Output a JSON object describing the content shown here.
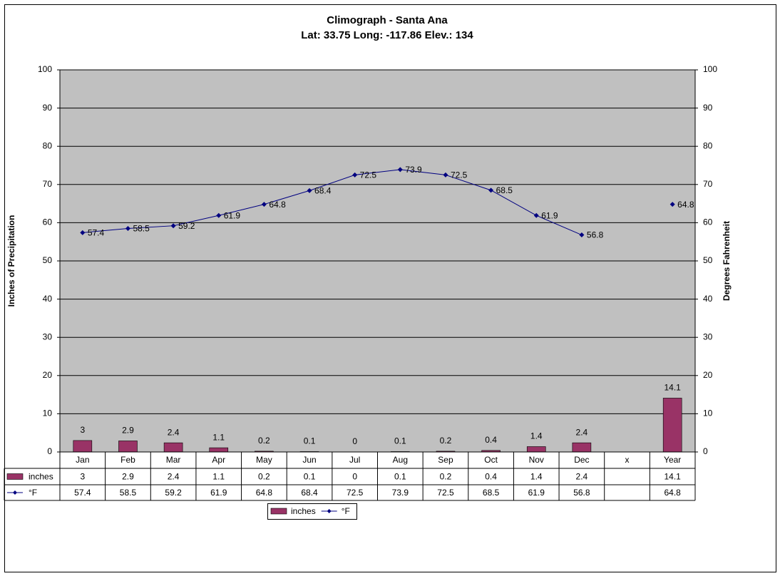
{
  "chart_data": {
    "type": "combo",
    "title": "Climograph - Santa Ana",
    "subtitle": "Lat: 33.75 Long: -117.86 Elev.: 134",
    "y_label": "Inches of Precipitation",
    "y2_label": "Degrees Fahrenheit",
    "categories": [
      "Jan",
      "Feb",
      "Mar",
      "Apr",
      "May",
      "Jun",
      "Jul",
      "Aug",
      "Sep",
      "Oct",
      "Nov",
      "Dec",
      "x",
      "Year"
    ],
    "series": [
      {
        "name": "inches",
        "type": "bar",
        "color": "#993366",
        "values": [
          3,
          2.9,
          2.4,
          1.1,
          0.2,
          0.1,
          0,
          0.1,
          0.2,
          0.4,
          1.4,
          2.4,
          null,
          14.1
        ]
      },
      {
        "name": "°F",
        "type": "line",
        "axis": "y2",
        "color": "#000080",
        "values": [
          57.4,
          58.5,
          59.2,
          61.9,
          64.8,
          68.4,
          72.5,
          73.9,
          72.5,
          68.5,
          61.9,
          56.8,
          null,
          64.8
        ]
      }
    ],
    "ylim": [
      0,
      100
    ],
    "yticks": [
      0,
      10,
      20,
      30,
      40,
      50,
      60,
      70,
      80,
      90,
      100
    ],
    "y2lim": [
      0,
      100
    ],
    "y2ticks": [
      0,
      10,
      20,
      30,
      40,
      50,
      60,
      70,
      80,
      90,
      100
    ],
    "grid": true,
    "legend": "bottom",
    "plot_background": "#c0c0c0"
  }
}
